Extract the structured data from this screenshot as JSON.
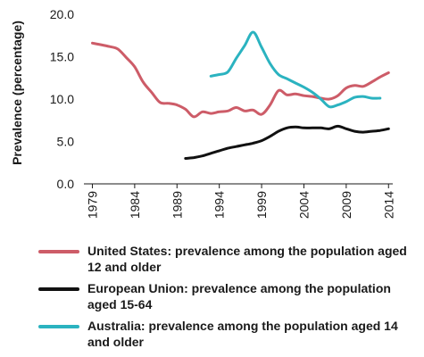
{
  "chart_data": {
    "type": "line",
    "ylabel": "Prevalence (percentage)",
    "xlabel": "",
    "ylim": [
      0,
      20
    ],
    "xlim": [
      1978,
      2014.5
    ],
    "yticks": [
      "0.0",
      "5.0",
      "10.0",
      "15.0",
      "20.0"
    ],
    "ytick_values": [
      0,
      5,
      10,
      15,
      20
    ],
    "xticks": [
      "1979",
      "1984",
      "1989",
      "1994",
      "1999",
      "2004",
      "2009",
      "2014"
    ],
    "xtick_values": [
      1979,
      1984,
      1989,
      1994,
      1999,
      2004,
      2009,
      2014
    ],
    "grid": false,
    "legend_position": "bottom",
    "series": [
      {
        "name": "United States: prevalence among the population aged 12 and older",
        "color": "#cd5c68",
        "x": [
          1979,
          1981,
          1982,
          1983,
          1984,
          1985,
          1986,
          1987,
          1988,
          1989,
          1990,
          1991,
          1992,
          1993,
          1994,
          1995,
          1996,
          1997,
          1998,
          1999,
          2000,
          2001,
          2002,
          2003,
          2004,
          2005,
          2006,
          2007,
          2008,
          2009,
          2010,
          2011,
          2012,
          2013,
          2014
        ],
        "y": [
          16.6,
          16.2,
          15.9,
          14.9,
          13.8,
          12.0,
          10.8,
          9.6,
          9.5,
          9.3,
          8.8,
          7.9,
          8.5,
          8.3,
          8.5,
          8.6,
          9.0,
          8.6,
          8.7,
          8.2,
          9.3,
          11.0,
          10.5,
          10.6,
          10.4,
          10.3,
          10.1,
          10.0,
          10.4,
          11.3,
          11.6,
          11.5,
          12.0,
          12.6,
          13.1
        ]
      },
      {
        "name": "European Union: prevalence among the population aged 15-64",
        "color": "#111111",
        "x": [
          1990,
          1991,
          1992,
          1993,
          1994,
          1995,
          1996,
          1997,
          1998,
          1999,
          2000,
          2001,
          2002,
          2003,
          2004,
          2005,
          2006,
          2007,
          2008,
          2009,
          2010,
          2011,
          2012,
          2013,
          2014
        ],
        "y": [
          3.0,
          3.1,
          3.3,
          3.6,
          3.9,
          4.2,
          4.4,
          4.6,
          4.8,
          5.1,
          5.6,
          6.2,
          6.6,
          6.7,
          6.6,
          6.6,
          6.6,
          6.5,
          6.8,
          6.5,
          6.2,
          6.1,
          6.2,
          6.3,
          6.5
        ]
      },
      {
        "name": "Australia: prevalence among the population aged 14 and older",
        "color": "#2bb3c0",
        "x": [
          1993,
          1994,
          1995,
          1996,
          1997,
          1998,
          1999,
          2000,
          2001,
          2002,
          2003,
          2004,
          2005,
          2006,
          2007,
          2008,
          2009,
          2010,
          2011,
          2012,
          2013
        ],
        "y": [
          12.7,
          12.9,
          13.2,
          14.8,
          16.3,
          17.9,
          16.1,
          14.2,
          12.9,
          12.4,
          11.9,
          11.4,
          10.8,
          10.0,
          9.1,
          9.3,
          9.7,
          10.2,
          10.3,
          10.1,
          10.1
        ]
      }
    ]
  }
}
